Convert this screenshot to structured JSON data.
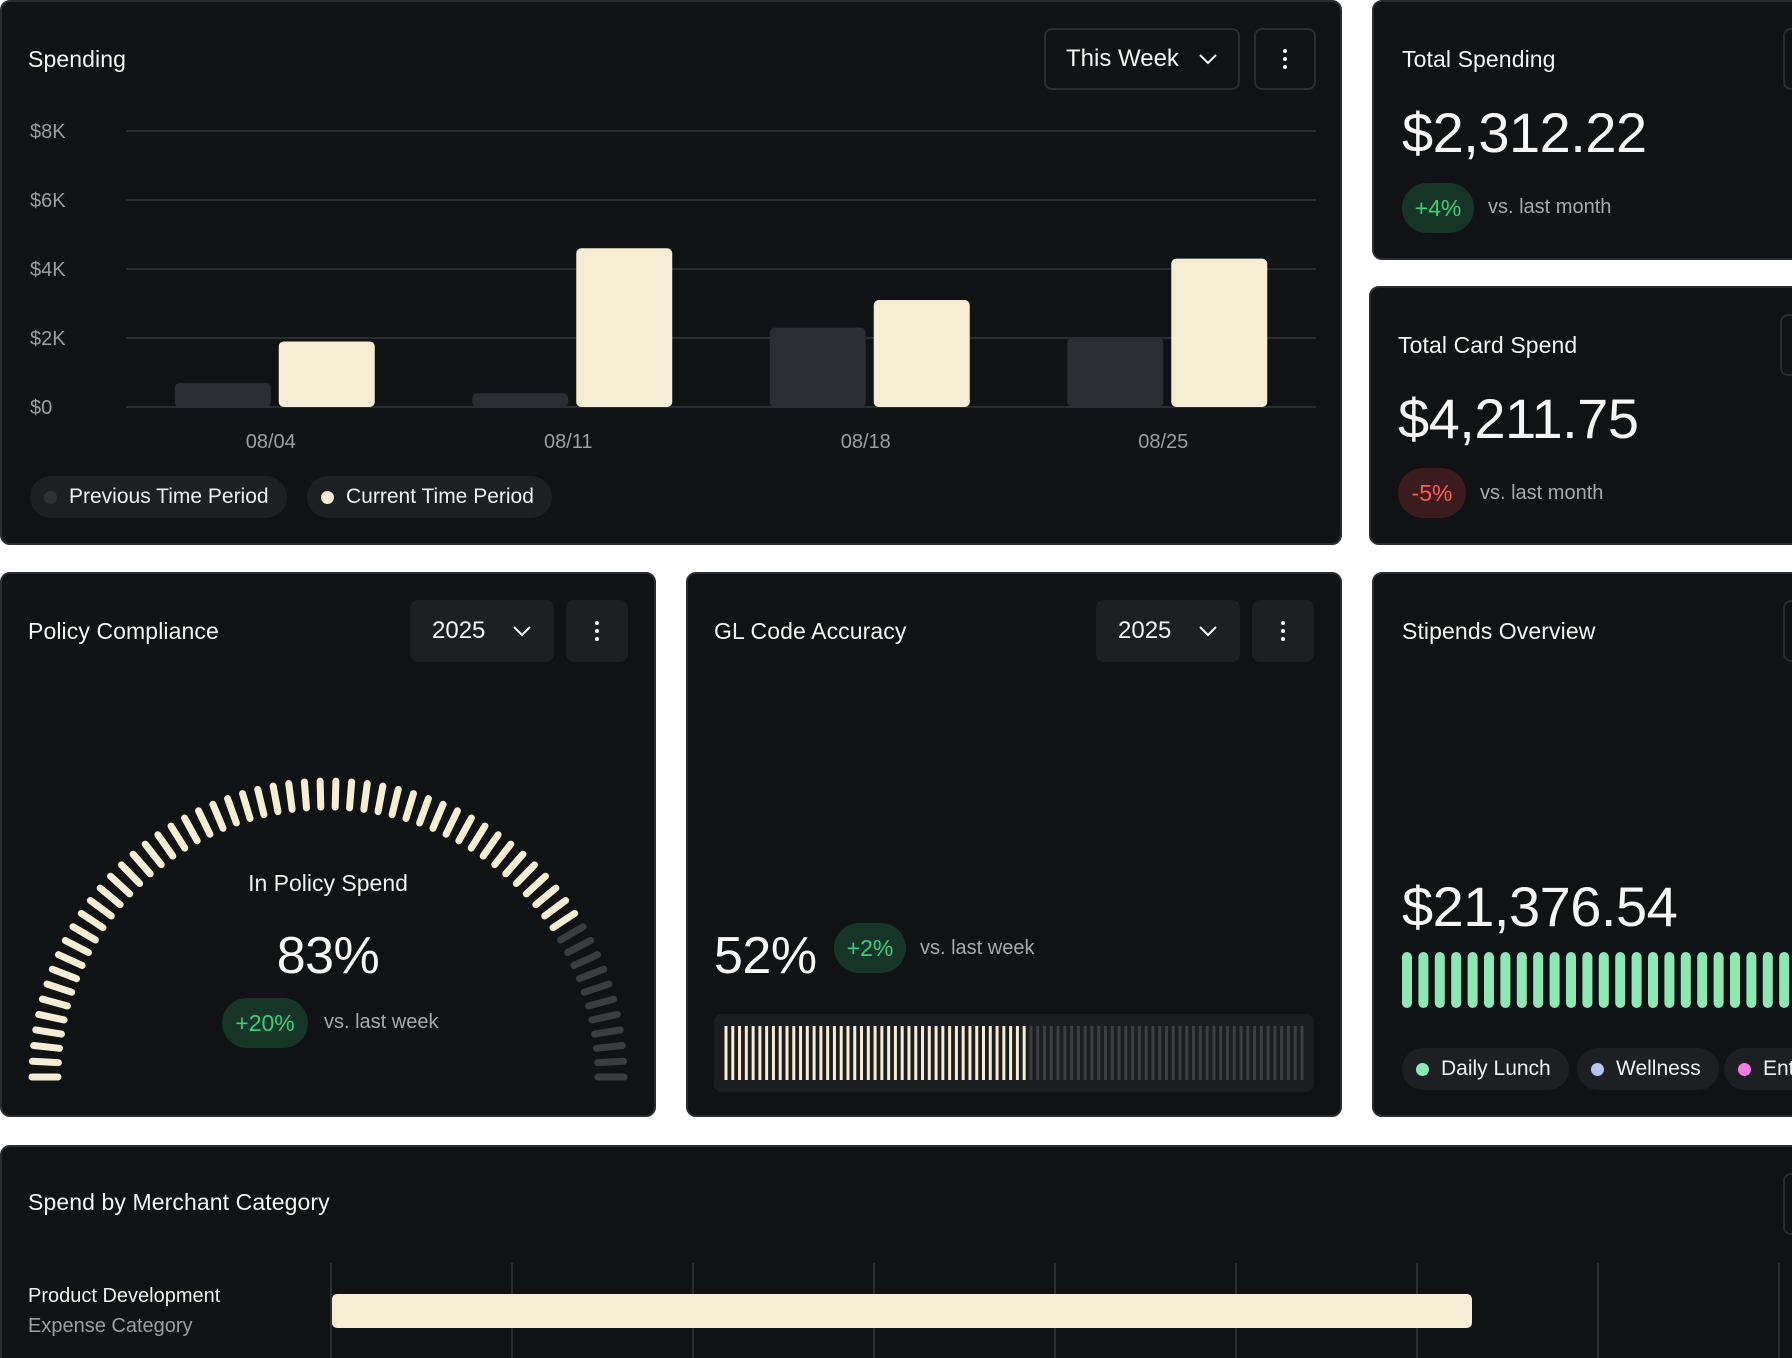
{
  "spending": {
    "title": "Spending",
    "period": "This Week",
    "chart_data": {
      "type": "bar",
      "categories": [
        "08/04",
        "08/11",
        "08/18",
        "08/25"
      ],
      "series": [
        {
          "name": "Previous Time Period",
          "values": [
            700,
            400,
            2300,
            2000
          ],
          "color": "#2a2d31"
        },
        {
          "name": "Current Time Period",
          "values": [
            1900,
            4600,
            3100,
            4300
          ],
          "color": "#f5edd4"
        }
      ],
      "yticks": [
        "$0",
        "$2K",
        "$4K",
        "$6K",
        "$8K"
      ],
      "ylim": [
        0,
        8000
      ],
      "grid": true,
      "legend": "bottom-left"
    },
    "legend": {
      "previous": "Previous Time Period",
      "current": "Current Time Period"
    }
  },
  "total_spending": {
    "title": "Total Spending",
    "value": "$2,312.22",
    "change": "+4%",
    "compare": "vs. last month"
  },
  "total_card_spend": {
    "title": "Total Card Spend",
    "value": "$4,211.75",
    "change": "-5%",
    "compare": "vs. last month"
  },
  "policy_compliance": {
    "title": "Policy Compliance",
    "year": "2025",
    "gauge_label": "In Policy Spend",
    "value": "83%",
    "fraction": 0.83,
    "change": "+20%",
    "compare": "vs. last week"
  },
  "gl_code": {
    "title": "GL Code Accuracy",
    "year": "2025",
    "value": "52%",
    "fraction": 0.52,
    "change": "+2%",
    "compare": "vs. last week"
  },
  "stipends": {
    "title": "Stipends Overview",
    "value": "$21,376.54",
    "legend": [
      {
        "label": "Daily Lunch",
        "color": "#8ee8b6"
      },
      {
        "label": "Wellness",
        "color": "#b8c4f5"
      },
      {
        "label": "Ent",
        "color": "#f07ee0"
      }
    ]
  },
  "merchant": {
    "title": "Spend by Merchant Category",
    "rows": [
      {
        "name": "Product Development",
        "category": "Expense Category"
      }
    ]
  },
  "colors": {
    "cream": "#f5edd4",
    "card": "#111214",
    "positive": "#34d17c",
    "negative": "#ff5a4d"
  }
}
